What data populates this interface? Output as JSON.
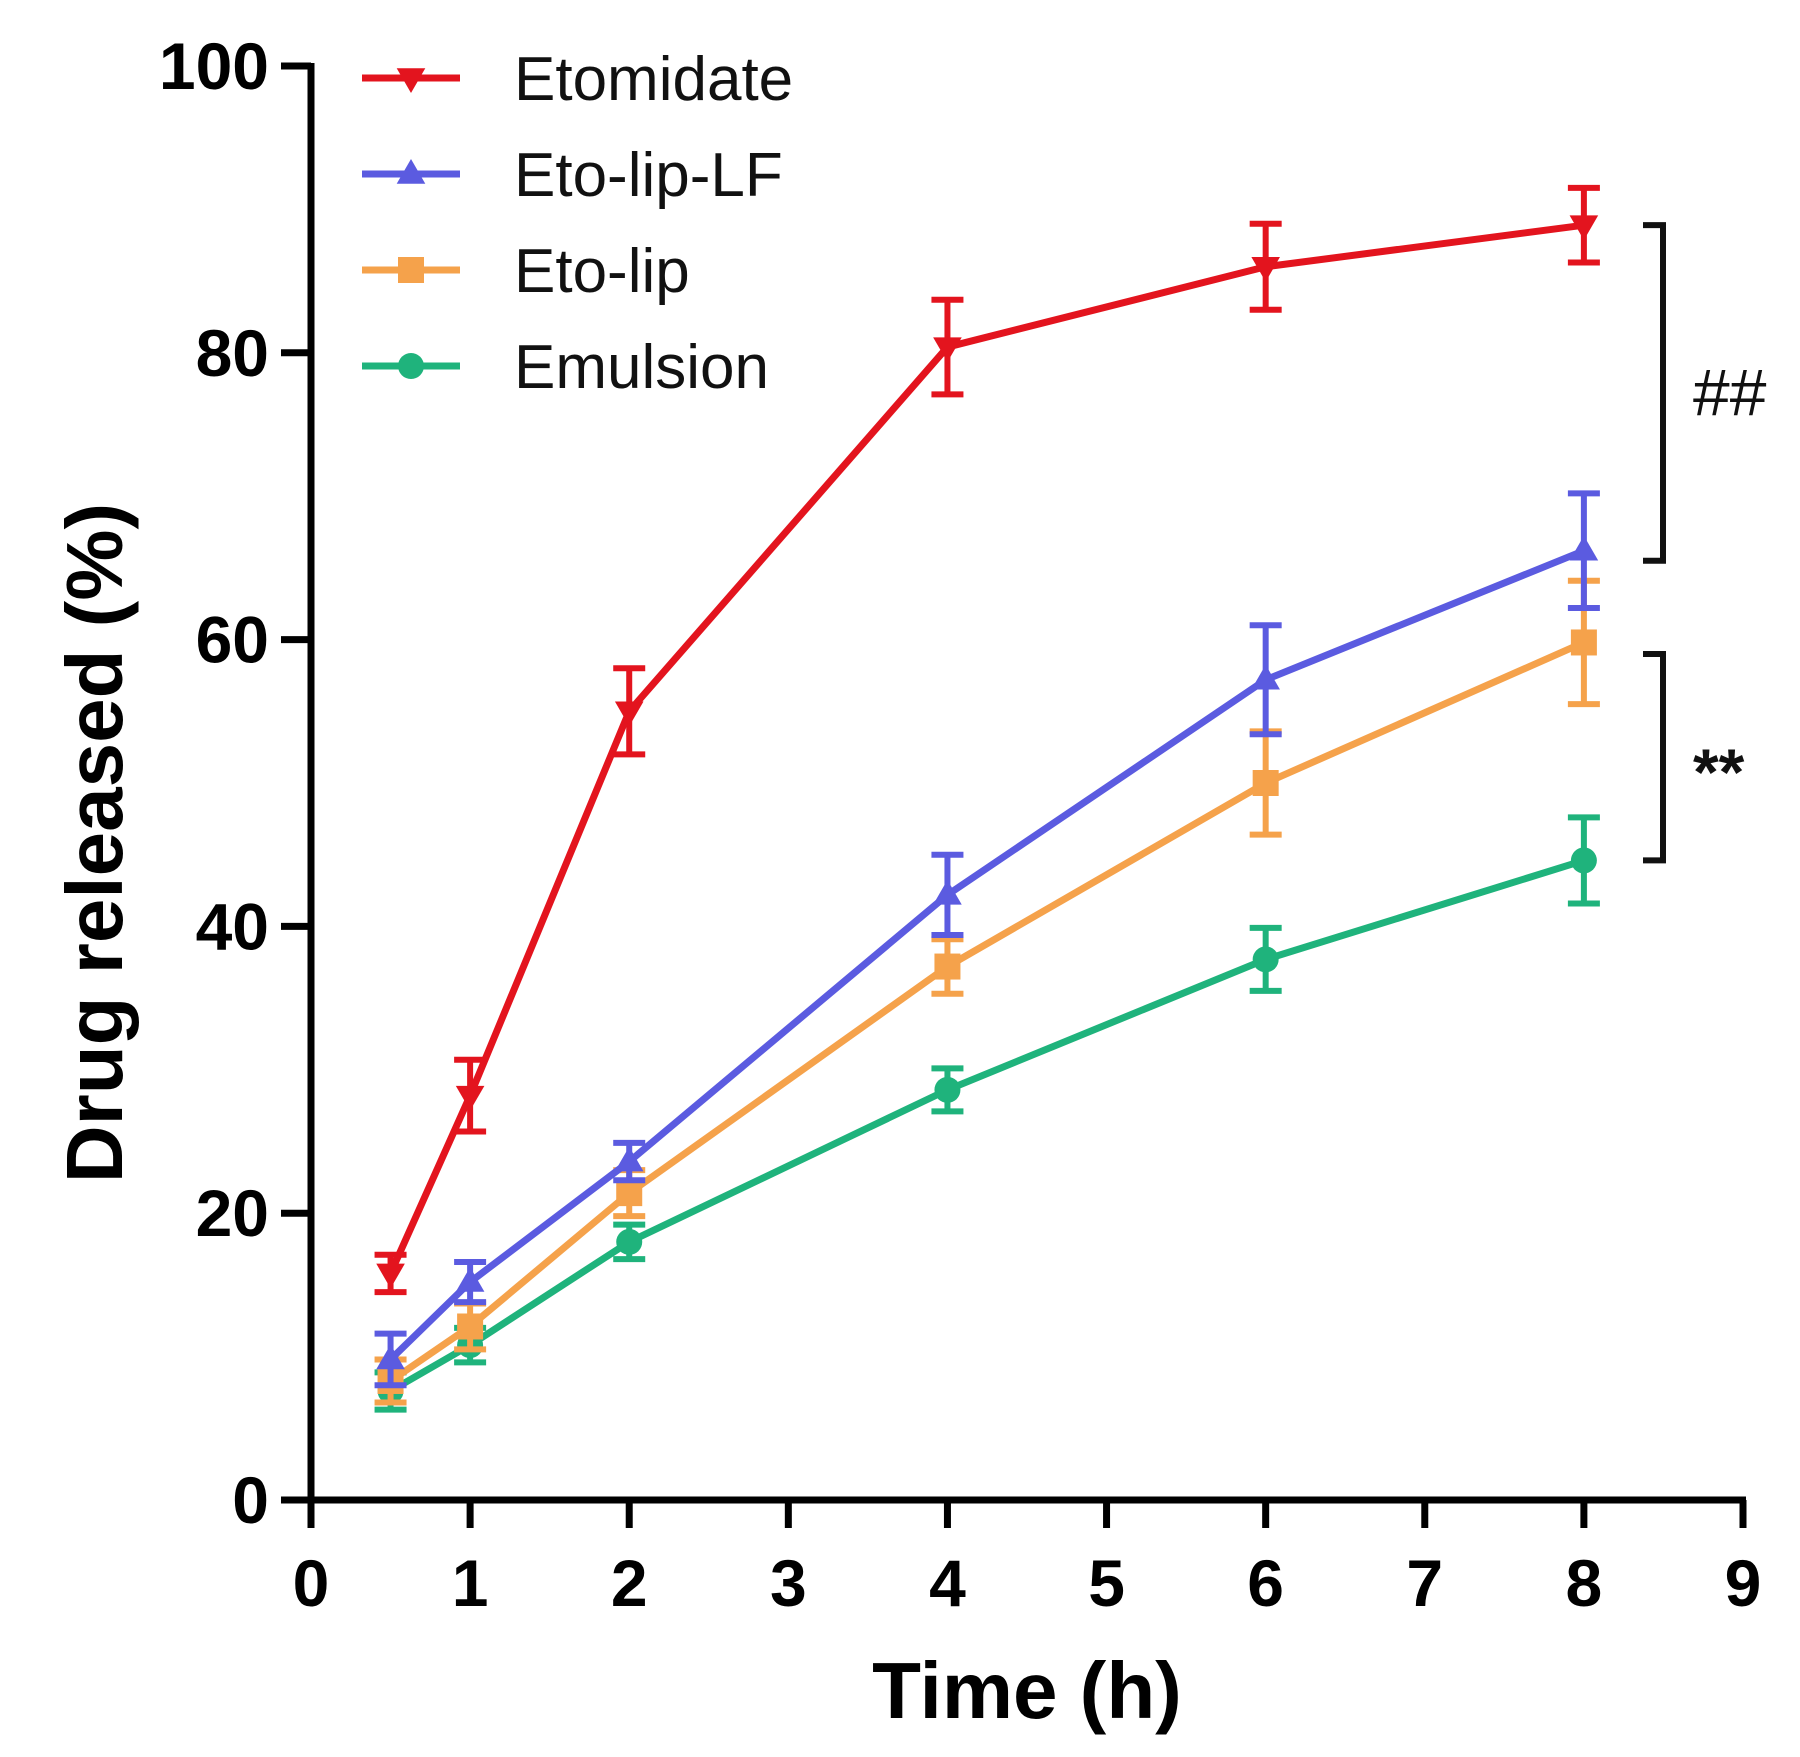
{
  "chart_data": {
    "type": "line",
    "title": "",
    "xlabel": "Time (h)",
    "ylabel": "Drug released (%)",
    "xlim": [
      0,
      9
    ],
    "ylim": [
      0,
      100
    ],
    "xticks": [
      0,
      1,
      2,
      3,
      4,
      5,
      6,
      7,
      8,
      9
    ],
    "yticks": [
      0,
      20,
      40,
      60,
      80,
      100
    ],
    "grid": false,
    "legend_position": "top-left",
    "x": [
      0.5,
      1,
      2,
      4,
      6,
      8
    ],
    "series": [
      {
        "name": "Etomidate",
        "color": "#e3141e",
        "marker": "triangle-down",
        "values": [
          15.8,
          28.2,
          55.0,
          80.4,
          86.0,
          88.9
        ],
        "errors": [
          1.3,
          2.5,
          3.0,
          3.3,
          3.0,
          2.6
        ]
      },
      {
        "name": "Eto-lip-LF",
        "color": "#5b5be0",
        "marker": "triangle-up",
        "values": [
          9.8,
          15.2,
          23.6,
          42.2,
          57.2,
          66.2
        ],
        "errors": [
          1.8,
          1.4,
          1.3,
          2.8,
          3.8,
          4.0
        ]
      },
      {
        "name": "Eto-lip",
        "color": "#f5a24b",
        "marker": "square",
        "values": [
          8.3,
          12.1,
          21.4,
          37.2,
          50.0,
          59.8
        ],
        "errors": [
          1.5,
          1.6,
          1.6,
          1.9,
          3.6,
          4.3
        ]
      },
      {
        "name": "Emulsion",
        "color": "#1fb37c",
        "marker": "circle",
        "values": [
          7.6,
          10.8,
          18.0,
          28.6,
          37.7,
          44.6
        ],
        "errors": [
          1.3,
          1.2,
          1.2,
          1.5,
          2.2,
          3.0
        ]
      }
    ],
    "annotations": [
      {
        "label": "##",
        "from_y": 88.9,
        "to_y": 65.5
      },
      {
        "label": "**",
        "from_y": 59.0,
        "to_y": 44.6
      }
    ]
  }
}
